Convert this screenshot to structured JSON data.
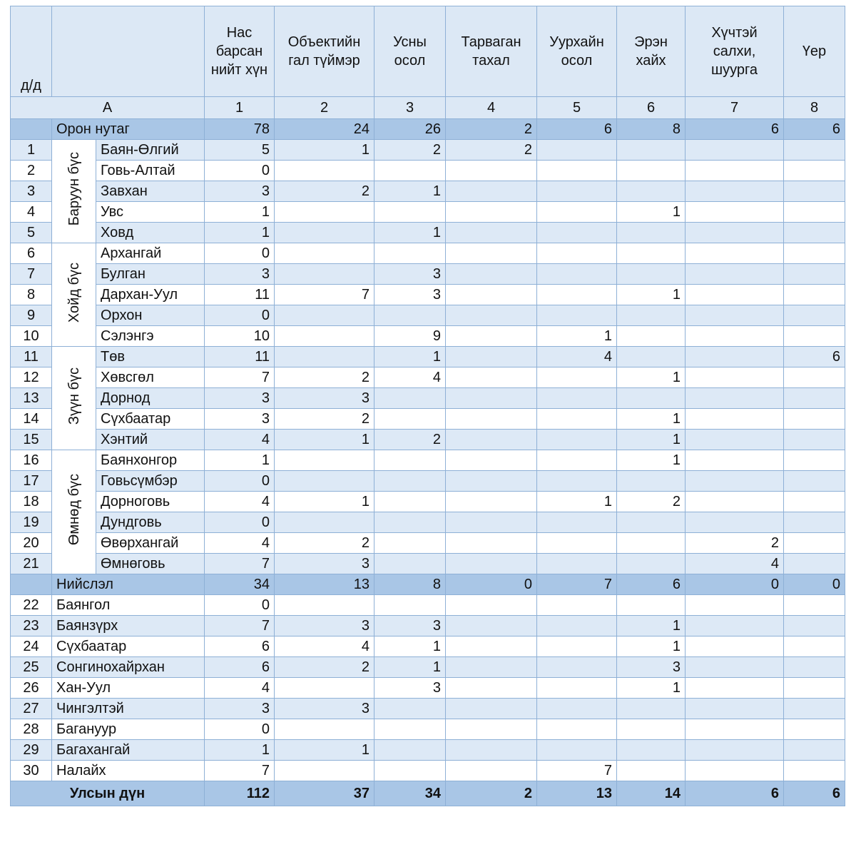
{
  "header": {
    "row_no": "д/д",
    "columns": [
      "Нас барсан нийт хүн",
      "Объектийн гал түймэр",
      "Усны осол",
      "Тарваган тахал",
      "Уурхайн осол",
      "Эрэн хайх",
      "Хүчтэй салхи, шуурга",
      "Үер"
    ],
    "letter": "A",
    "column_numbers": [
      1,
      2,
      3,
      4,
      5,
      6,
      7,
      8
    ]
  },
  "sections": [
    {
      "name": "Орон нутаг",
      "totals": [
        78,
        24,
        26,
        2,
        6,
        8,
        6,
        6
      ],
      "groups": [
        {
          "name": "Баруун бүс",
          "rows": [
            {
              "no": 1,
              "name": "Баян-Өлгий",
              "values": [
                5,
                1,
                2,
                2,
                null,
                null,
                null,
                null
              ]
            },
            {
              "no": 2,
              "name": "Говь-Алтай",
              "values": [
                0,
                null,
                null,
                null,
                null,
                null,
                null,
                null
              ]
            },
            {
              "no": 3,
              "name": "Завхан",
              "values": [
                3,
                2,
                1,
                null,
                null,
                null,
                null,
                null
              ]
            },
            {
              "no": 4,
              "name": "Увс",
              "values": [
                1,
                null,
                null,
                null,
                null,
                1,
                null,
                null
              ]
            },
            {
              "no": 5,
              "name": "Ховд",
              "values": [
                1,
                null,
                1,
                null,
                null,
                null,
                null,
                null
              ]
            }
          ]
        },
        {
          "name": "Хойд бүс",
          "rows": [
            {
              "no": 6,
              "name": "Архангай",
              "values": [
                0,
                null,
                null,
                null,
                null,
                null,
                null,
                null
              ]
            },
            {
              "no": 7,
              "name": "Булган",
              "values": [
                3,
                null,
                3,
                null,
                null,
                null,
                null,
                null
              ]
            },
            {
              "no": 8,
              "name": "Дархан-Уул",
              "values": [
                11,
                7,
                3,
                null,
                null,
                1,
                null,
                null
              ]
            },
            {
              "no": 9,
              "name": "Орхон",
              "values": [
                0,
                null,
                null,
                null,
                null,
                null,
                null,
                null
              ]
            },
            {
              "no": 10,
              "name": "Сэлэнгэ",
              "values": [
                10,
                null,
                9,
                null,
                1,
                null,
                null,
                null
              ]
            }
          ]
        },
        {
          "name": "Зүүн бүс",
          "rows": [
            {
              "no": 11,
              "name": "Төв",
              "values": [
                11,
                null,
                1,
                null,
                4,
                null,
                null,
                6
              ]
            },
            {
              "no": 12,
              "name": "Хөвсгөл",
              "values": [
                7,
                2,
                4,
                null,
                null,
                1,
                null,
                null
              ]
            },
            {
              "no": 13,
              "name": "Дорнод",
              "values": [
                3,
                3,
                null,
                null,
                null,
                null,
                null,
                null
              ]
            },
            {
              "no": 14,
              "name": "Сүхбаатар",
              "values": [
                3,
                2,
                null,
                null,
                null,
                1,
                null,
                null
              ]
            },
            {
              "no": 15,
              "name": "Хэнтий",
              "values": [
                4,
                1,
                2,
                null,
                null,
                1,
                null,
                null
              ]
            }
          ]
        },
        {
          "name": "Өмнөд бүс",
          "rows": [
            {
              "no": 16,
              "name": "Баянхонгор",
              "values": [
                1,
                null,
                null,
                null,
                null,
                1,
                null,
                null
              ]
            },
            {
              "no": 17,
              "name": "Говьсүмбэр",
              "values": [
                0,
                null,
                null,
                null,
                null,
                null,
                null,
                null
              ]
            },
            {
              "no": 18,
              "name": "Дорноговь",
              "values": [
                4,
                1,
                null,
                null,
                1,
                2,
                null,
                null
              ]
            },
            {
              "no": 19,
              "name": "Дундговь",
              "values": [
                0,
                null,
                null,
                null,
                null,
                null,
                null,
                null
              ]
            },
            {
              "no": 20,
              "name": "Өвөрхангай",
              "values": [
                4,
                2,
                null,
                null,
                null,
                null,
                2,
                null
              ]
            },
            {
              "no": 21,
              "name": "Өмнөговь",
              "values": [
                7,
                3,
                null,
                null,
                null,
                null,
                4,
                null
              ]
            }
          ]
        }
      ]
    },
    {
      "name": "Нийслэл",
      "totals": [
        34,
        13,
        8,
        0,
        7,
        6,
        0,
        0
      ],
      "rows": [
        {
          "no": 22,
          "name": "Баянгол",
          "values": [
            0,
            null,
            null,
            null,
            null,
            null,
            null,
            null
          ]
        },
        {
          "no": 23,
          "name": "Баянзүрх",
          "values": [
            7,
            3,
            3,
            null,
            null,
            1,
            null,
            null
          ]
        },
        {
          "no": 24,
          "name": "Сүхбаатар",
          "values": [
            6,
            4,
            1,
            null,
            null,
            1,
            null,
            null
          ]
        },
        {
          "no": 25,
          "name": "Сонгинохайрхан",
          "values": [
            6,
            2,
            1,
            null,
            null,
            3,
            null,
            null
          ]
        },
        {
          "no": 26,
          "name": "Хан-Уул",
          "values": [
            4,
            null,
            3,
            null,
            null,
            1,
            null,
            null
          ]
        },
        {
          "no": 27,
          "name": "Чингэлтэй",
          "values": [
            3,
            3,
            null,
            null,
            null,
            null,
            null,
            null
          ]
        },
        {
          "no": 28,
          "name": "Багануур",
          "values": [
            0,
            null,
            null,
            null,
            null,
            null,
            null,
            null
          ]
        },
        {
          "no": 29,
          "name": "Багахангай",
          "values": [
            1,
            1,
            null,
            null,
            null,
            null,
            null,
            null
          ]
        },
        {
          "no": 30,
          "name": "Налайх",
          "values": [
            7,
            null,
            null,
            null,
            7,
            null,
            null,
            null
          ]
        }
      ]
    }
  ],
  "total": {
    "label": "Улсын дүн",
    "values": [
      112,
      37,
      34,
      2,
      13,
      14,
      6,
      6
    ]
  }
}
